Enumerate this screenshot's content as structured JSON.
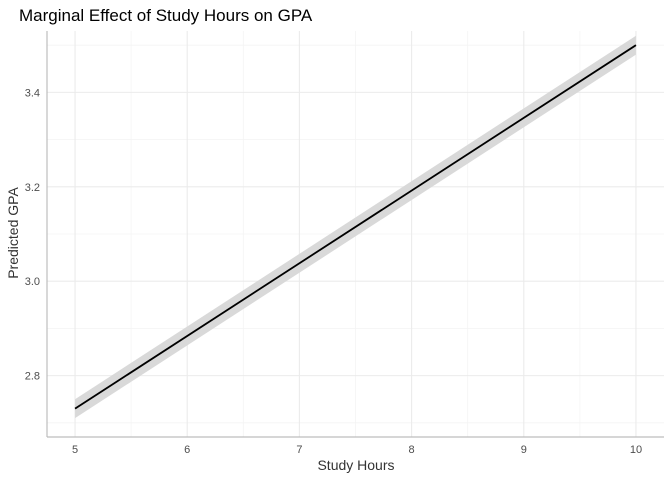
{
  "chart_data": {
    "type": "line",
    "title": "Marginal Effect of Study Hours on GPA",
    "xlabel": "Study Hours",
    "ylabel": "Predicted GPA",
    "xlim": [
      4.75,
      10.25
    ],
    "ylim": [
      2.67,
      3.53
    ],
    "x_ticks": [
      5,
      6,
      7,
      8,
      9,
      10
    ],
    "x_tick_labels": [
      "5",
      "6",
      "7",
      "8",
      "9",
      "10"
    ],
    "y_ticks": [
      2.8,
      3.0,
      3.2,
      3.4
    ],
    "y_tick_labels": [
      "2.8",
      "3.0",
      "3.2",
      "3.4"
    ],
    "grid": true,
    "legend": "none",
    "series": [
      {
        "x": [
          5,
          10
        ],
        "y": [
          2.73,
          3.5
        ],
        "ci_lower": [
          2.71,
          3.48
        ],
        "ci_upper": [
          2.75,
          3.52
        ]
      }
    ],
    "colors": {
      "line": "#000000",
      "ribbon": "#d9d9d9",
      "grid_major": "#ebebeb",
      "grid_minor": "#f4f4f4",
      "axis": "#bdbdbd"
    }
  }
}
